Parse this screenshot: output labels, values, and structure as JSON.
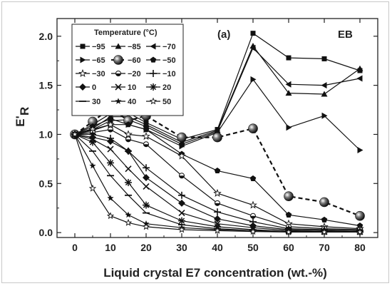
{
  "chart_data": {
    "type": "line",
    "panel_label": "(a)",
    "annotation": "EB",
    "xlabel": "Liquid crystal E7 concentration (wt.-%)",
    "ylabel_main": "E'",
    "ylabel_sub": "R",
    "xlim": [
      -5,
      85
    ],
    "ylim": [
      -0.05,
      2.18
    ],
    "x_ticks": [
      0,
      10,
      20,
      30,
      40,
      50,
      60,
      70,
      80
    ],
    "y_ticks": [
      0.0,
      0.5,
      1.0,
      1.5,
      2.0
    ],
    "y_tick_labels": [
      "0.0",
      "0.5",
      "1.0",
      "1.5",
      "2.0"
    ],
    "legend_title": "Temperature (°C)",
    "legend_position": "top-left",
    "x": [
      0,
      5,
      10,
      15,
      20,
      30,
      40,
      50,
      60,
      70,
      80
    ],
    "series": [
      {
        "name": "−95",
        "marker": "square",
        "values": [
          1.0,
          1.1,
          1.21,
          1.22,
          1.12,
          0.95,
          1.05,
          2.03,
          1.78,
          1.77,
          1.65
        ]
      },
      {
        "name": "−85",
        "marker": "triangle-up",
        "values": [
          1.0,
          1.06,
          1.18,
          1.18,
          1.1,
          0.92,
          1.04,
          1.9,
          1.42,
          1.41,
          1.67
        ]
      },
      {
        "name": "−70",
        "marker": "triangle-left",
        "values": [
          1.0,
          1.05,
          1.14,
          1.15,
          1.08,
          0.9,
          1.03,
          1.88,
          1.51,
          1.5,
          1.57
        ]
      },
      {
        "name": "−65",
        "marker": "triangle-right",
        "values": [
          1.0,
          1.04,
          1.1,
          1.1,
          1.05,
          0.88,
          1.02,
          1.56,
          1.07,
          1.19,
          0.84
        ]
      },
      {
        "name": "−60",
        "marker": "big-circle",
        "dashed": true,
        "values": [
          1.0,
          1.13,
          1.27,
          1.14,
          1.19,
          0.97,
          0.97,
          1.06,
          0.37,
          0.31,
          0.17
        ]
      },
      {
        "name": "−50",
        "marker": "pentagon",
        "values": [
          1.0,
          1.08,
          1.16,
          1.1,
          1.05,
          0.8,
          0.63,
          0.55,
          0.18,
          0.13,
          0.07
        ]
      },
      {
        "name": "−30",
        "marker": "star-open",
        "values": [
          1.0,
          1.05,
          1.1,
          1.0,
          0.98,
          0.78,
          0.4,
          0.28,
          0.09,
          0.06,
          0.04
        ]
      },
      {
        "name": "−20",
        "marker": "half-circle",
        "values": [
          1.0,
          1.02,
          1.05,
          0.95,
          0.9,
          0.58,
          0.3,
          0.17,
          0.06,
          0.04,
          0.03
        ]
      },
      {
        "name": "−10",
        "marker": "plus",
        "values": [
          1.0,
          1.0,
          0.96,
          0.83,
          0.66,
          0.38,
          0.21,
          0.11,
          0.04,
          0.03,
          0.02
        ]
      },
      {
        "name": "0",
        "marker": "diamond",
        "values": [
          1.0,
          0.97,
          0.93,
          0.83,
          0.56,
          0.3,
          0.14,
          0.07,
          0.03,
          0.02,
          0.01
        ]
      },
      {
        "name": "10",
        "marker": "x",
        "values": [
          1.0,
          0.95,
          0.85,
          0.65,
          0.47,
          0.2,
          0.09,
          0.05,
          0.02,
          0.01,
          0.01
        ]
      },
      {
        "name": "20",
        "marker": "asterisk",
        "values": [
          1.0,
          0.92,
          0.71,
          0.51,
          0.28,
          0.12,
          0.06,
          0.03,
          0.01,
          0.01,
          0.005
        ]
      },
      {
        "name": "30",
        "marker": "dash",
        "values": [
          1.0,
          0.83,
          0.58,
          0.38,
          0.2,
          0.08,
          0.04,
          0.02,
          0.01,
          0.005,
          0.005
        ]
      },
      {
        "name": "40",
        "marker": "star-solid",
        "values": [
          1.0,
          0.68,
          0.35,
          0.18,
          0.09,
          0.05,
          0.03,
          0.02,
          0.01,
          0.005,
          0.005
        ]
      },
      {
        "name": "50",
        "marker": "star-open-small",
        "values": [
          1.0,
          0.45,
          0.17,
          0.1,
          0.06,
          0.03,
          0.02,
          0.01,
          0.005,
          0.005,
          0.005
        ]
      }
    ]
  }
}
